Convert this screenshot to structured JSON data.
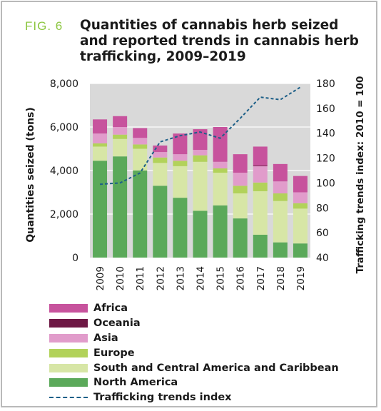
{
  "figure": {
    "label": "FIG. 6",
    "title": "Quantities of cannabis herb seized and reported trends in cannabis herb trafficking, 2009–2019"
  },
  "colors": {
    "plot_background": "#d9d9d9",
    "Africa": "#c7539d",
    "Oceania": "#6e1845",
    "Asia": "#e19ccb",
    "Europe": "#b2d25a",
    "South and Central America and Caribbean": "#d7e6a6",
    "North America": "#5ba95a",
    "Trafficking trends index": "#1d5f88"
  },
  "chart_data": {
    "type": "bar",
    "stacked": true,
    "title": "Quantities of cannabis herb seized and reported trends in cannabis herb trafficking, 2009–2019",
    "categories": [
      "2009",
      "2010",
      "2011",
      "2012",
      "2013",
      "2014",
      "2015",
      "2016",
      "2017",
      "2018",
      "2019"
    ],
    "ylabel": "Quantities seized (tons)",
    "ylim": [
      0,
      8000
    ],
    "yticks": [
      0,
      2000,
      4000,
      6000,
      8000
    ],
    "ytick_labels": [
      "0",
      "2,000",
      "4,000",
      "6,000",
      "8,000"
    ],
    "y2label": "Trafficking trends index: 2010 = 100",
    "y2lim": [
      40,
      180
    ],
    "y2ticks": [
      40,
      60,
      80,
      100,
      120,
      140,
      160,
      180
    ],
    "grid": true,
    "legend_position": "bottom",
    "series": [
      {
        "name": "North America",
        "values": [
          4450,
          4650,
          4000,
          3300,
          2750,
          2150,
          2400,
          1800,
          1050,
          700,
          650
        ]
      },
      {
        "name": "South and Central America and Caribbean",
        "values": [
          650,
          800,
          1000,
          1050,
          1450,
          2250,
          1500,
          1150,
          2000,
          1900,
          1600
        ]
      },
      {
        "name": "Europe",
        "values": [
          150,
          200,
          200,
          250,
          250,
          300,
          200,
          350,
          400,
          350,
          250
        ]
      },
      {
        "name": "Asia",
        "values": [
          450,
          350,
          300,
          250,
          300,
          250,
          300,
          600,
          750,
          550,
          500
        ]
      },
      {
        "name": "Oceania",
        "values": [
          0,
          0,
          0,
          0,
          0,
          0,
          0,
          0,
          30,
          0,
          0
        ]
      },
      {
        "name": "Africa",
        "values": [
          650,
          500,
          450,
          300,
          950,
          950,
          1600,
          850,
          870,
          800,
          750
        ]
      }
    ],
    "line_series": {
      "name": "Trafficking trends index",
      "axis": "right",
      "style": "dashed",
      "values": [
        99,
        100,
        108,
        133,
        138,
        141,
        136,
        152,
        169,
        167,
        177
      ]
    }
  }
}
